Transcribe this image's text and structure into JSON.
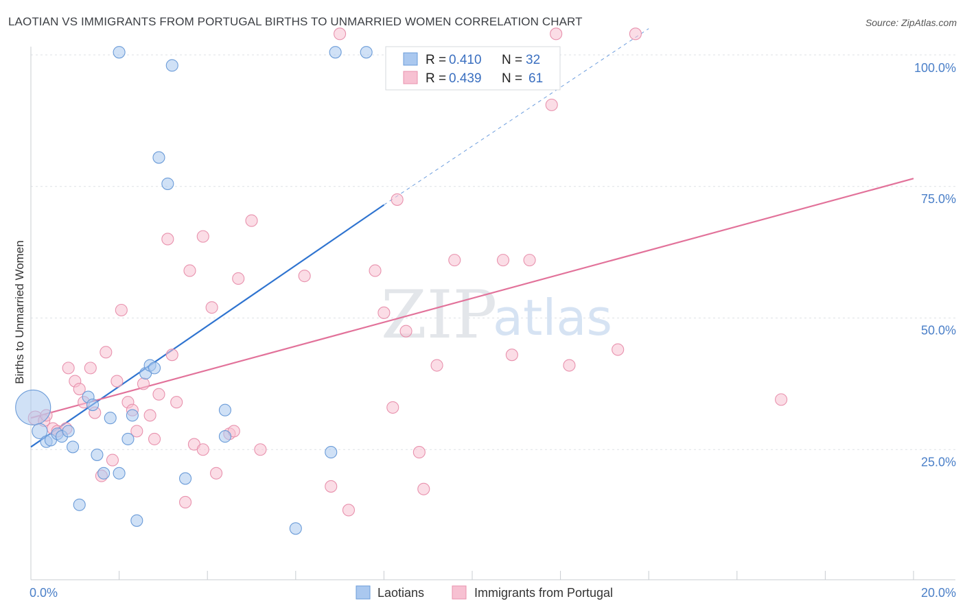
{
  "title": "LAOTIAN VS IMMIGRANTS FROM PORTUGAL BIRTHS TO UNMARRIED WOMEN CORRELATION CHART",
  "source": "Source: ZipAtlas.com",
  "watermark": {
    "zip": "ZIP",
    "atlas": "atlas"
  },
  "colors": {
    "blue_fill": "#aac8ef",
    "blue_stroke": "#6a9bd8",
    "blue_line": "#2f74d0",
    "pink_fill": "#f7c1d2",
    "pink_stroke": "#e891ad",
    "pink_line": "#e2729a",
    "axis_text": "#4a7fc8",
    "grid": "#dde1e6"
  },
  "chart_data": {
    "type": "scatter",
    "xlabel": "",
    "ylabel": "Births to Unmarried Women",
    "xlim": [
      0,
      20
    ],
    "ylim": [
      0,
      100
    ],
    "x_tick_labels": [
      "0.0%",
      "20.0%"
    ],
    "y_ticks": [
      25,
      50,
      75,
      100
    ],
    "y_tick_labels": [
      "25.0%",
      "50.0%",
      "75.0%",
      "100.0%"
    ],
    "legend": {
      "r_label": "R =",
      "n_label": "N =",
      "entries": [
        {
          "r": "0.410",
          "n": "32"
        },
        {
          "r": "0.439",
          "n": "61"
        }
      ]
    },
    "series": [
      {
        "name": "Laotians",
        "color": "#aac8ef",
        "trend": {
          "x0": 0,
          "y0": 25.5,
          "x1": 8.0,
          "y1": 71.5,
          "dash_to_x": 14.0,
          "dash_to_y": 105
        },
        "points": [
          {
            "x": 0.05,
            "y": 33.0,
            "s": 3
          },
          {
            "x": 0.2,
            "y": 28.5,
            "s": 1.3
          },
          {
            "x": 0.35,
            "y": 26.5,
            "s": 1
          },
          {
            "x": 0.45,
            "y": 26.8,
            "s": 1
          },
          {
            "x": 0.6,
            "y": 28.0,
            "s": 1
          },
          {
            "x": 0.7,
            "y": 27.5,
            "s": 1
          },
          {
            "x": 0.85,
            "y": 28.5,
            "s": 1
          },
          {
            "x": 0.95,
            "y": 25.5,
            "s": 1
          },
          {
            "x": 1.1,
            "y": 14.5,
            "s": 1
          },
          {
            "x": 1.3,
            "y": 35.0,
            "s": 1
          },
          {
            "x": 1.4,
            "y": 33.5,
            "s": 1
          },
          {
            "x": 1.5,
            "y": 24.0,
            "s": 1
          },
          {
            "x": 1.65,
            "y": 20.5,
            "s": 1
          },
          {
            "x": 1.8,
            "y": 31.0,
            "s": 1
          },
          {
            "x": 2.0,
            "y": 20.5,
            "s": 1
          },
          {
            "x": 2.2,
            "y": 27.0,
            "s": 1
          },
          {
            "x": 2.3,
            "y": 31.5,
            "s": 1
          },
          {
            "x": 2.4,
            "y": 11.5,
            "s": 1
          },
          {
            "x": 2.6,
            "y": 39.5,
            "s": 1
          },
          {
            "x": 2.7,
            "y": 41.0,
            "s": 1
          },
          {
            "x": 2.8,
            "y": 40.5,
            "s": 1
          },
          {
            "x": 2.9,
            "y": 80.5,
            "s": 1
          },
          {
            "x": 3.1,
            "y": 75.5,
            "s": 1
          },
          {
            "x": 3.2,
            "y": 98.0,
            "s": 1
          },
          {
            "x": 3.5,
            "y": 19.5,
            "s": 1
          },
          {
            "x": 4.4,
            "y": 27.5,
            "s": 1
          },
          {
            "x": 4.4,
            "y": 32.5,
            "s": 1
          },
          {
            "x": 6.0,
            "y": 10.0,
            "s": 1
          },
          {
            "x": 6.8,
            "y": 24.5,
            "s": 1
          },
          {
            "x": 7.6,
            "y": 100.5,
            "s": 1
          },
          {
            "x": 2.0,
            "y": 100.5,
            "s": 1
          },
          {
            "x": 6.9,
            "y": 100.5,
            "s": 1
          }
        ]
      },
      {
        "name": "Immigrants from Portugal",
        "color": "#f7c1d2",
        "trend": {
          "x0": 0,
          "y0": 31.0,
          "x1": 20,
          "y1": 76.5
        },
        "points": [
          {
            "x": 0.1,
            "y": 31.0,
            "s": 1.2
          },
          {
            "x": 0.3,
            "y": 30.5,
            "s": 1
          },
          {
            "x": 0.5,
            "y": 29.0,
            "s": 1
          },
          {
            "x": 0.6,
            "y": 28.5,
            "s": 1
          },
          {
            "x": 0.8,
            "y": 29.0,
            "s": 1
          },
          {
            "x": 0.85,
            "y": 40.5,
            "s": 1
          },
          {
            "x": 1.0,
            "y": 38.0,
            "s": 1
          },
          {
            "x": 1.1,
            "y": 36.5,
            "s": 1
          },
          {
            "x": 1.2,
            "y": 34.0,
            "s": 1
          },
          {
            "x": 1.35,
            "y": 40.5,
            "s": 1
          },
          {
            "x": 1.45,
            "y": 32.0,
            "s": 1
          },
          {
            "x": 1.6,
            "y": 20.0,
            "s": 1
          },
          {
            "x": 1.7,
            "y": 43.5,
            "s": 1
          },
          {
            "x": 1.85,
            "y": 23.0,
            "s": 1
          },
          {
            "x": 1.95,
            "y": 38.0,
            "s": 1
          },
          {
            "x": 2.05,
            "y": 51.5,
            "s": 1
          },
          {
            "x": 2.2,
            "y": 34.0,
            "s": 1
          },
          {
            "x": 2.3,
            "y": 32.5,
            "s": 1
          },
          {
            "x": 2.4,
            "y": 28.5,
            "s": 1
          },
          {
            "x": 2.55,
            "y": 37.5,
            "s": 1
          },
          {
            "x": 2.7,
            "y": 31.5,
            "s": 1
          },
          {
            "x": 2.8,
            "y": 27.0,
            "s": 1
          },
          {
            "x": 2.9,
            "y": 35.5,
            "s": 1
          },
          {
            "x": 3.1,
            "y": 65.0,
            "s": 1
          },
          {
            "x": 3.2,
            "y": 43.0,
            "s": 1
          },
          {
            "x": 3.3,
            "y": 34.0,
            "s": 1
          },
          {
            "x": 3.5,
            "y": 15.0,
            "s": 1
          },
          {
            "x": 3.6,
            "y": 59.0,
            "s": 1
          },
          {
            "x": 3.7,
            "y": 26.0,
            "s": 1
          },
          {
            "x": 3.9,
            "y": 25.0,
            "s": 1
          },
          {
            "x": 3.9,
            "y": 65.5,
            "s": 1
          },
          {
            "x": 4.1,
            "y": 52.0,
            "s": 1
          },
          {
            "x": 4.2,
            "y": 20.5,
            "s": 1
          },
          {
            "x": 4.5,
            "y": 28.0,
            "s": 1
          },
          {
            "x": 4.6,
            "y": 28.5,
            "s": 1
          },
          {
            "x": 4.7,
            "y": 57.5,
            "s": 1
          },
          {
            "x": 5.0,
            "y": 68.5,
            "s": 1
          },
          {
            "x": 5.2,
            "y": 25.0,
            "s": 1
          },
          {
            "x": 6.2,
            "y": 58.0,
            "s": 1
          },
          {
            "x": 6.8,
            "y": 18.0,
            "s": 1
          },
          {
            "x": 7.2,
            "y": 13.5,
            "s": 1
          },
          {
            "x": 7.8,
            "y": 59.0,
            "s": 1
          },
          {
            "x": 8.0,
            "y": 51.0,
            "s": 1
          },
          {
            "x": 8.2,
            "y": 33.0,
            "s": 1
          },
          {
            "x": 8.3,
            "y": 72.5,
            "s": 1
          },
          {
            "x": 8.5,
            "y": 47.5,
            "s": 1
          },
          {
            "x": 8.8,
            "y": 24.5,
            "s": 1
          },
          {
            "x": 8.9,
            "y": 17.5,
            "s": 1
          },
          {
            "x": 9.2,
            "y": 41.0,
            "s": 1
          },
          {
            "x": 9.6,
            "y": 61.0,
            "s": 1
          },
          {
            "x": 10.7,
            "y": 61.0,
            "s": 1
          },
          {
            "x": 10.9,
            "y": 43.0,
            "s": 1
          },
          {
            "x": 11.3,
            "y": 61.0,
            "s": 1
          },
          {
            "x": 11.8,
            "y": 90.5,
            "s": 1
          },
          {
            "x": 12.2,
            "y": 41.0,
            "s": 1
          },
          {
            "x": 13.3,
            "y": 44.0,
            "s": 1
          },
          {
            "x": 13.7,
            "y": 104.0,
            "s": 1
          },
          {
            "x": 17.0,
            "y": 34.5,
            "s": 1
          },
          {
            "x": 11.9,
            "y": 104.0,
            "s": 1
          },
          {
            "x": 7.0,
            "y": 104.0,
            "s": 1
          },
          {
            "x": 0.35,
            "y": 31.5,
            "s": 1
          }
        ]
      }
    ]
  }
}
